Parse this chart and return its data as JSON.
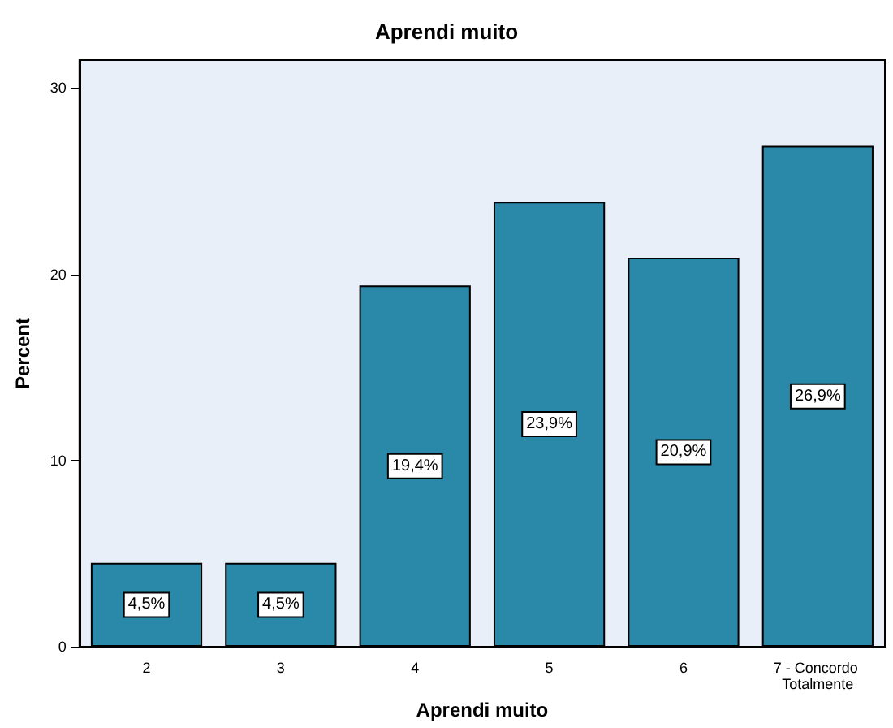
{
  "chart_data": {
    "type": "bar",
    "title": "Aprendi muito",
    "xlabel": "Aprendi muito",
    "ylabel": "Percent",
    "categories": [
      "2",
      "3",
      "4",
      "5",
      "6",
      "7 - Concordo Totalmente"
    ],
    "values": [
      4.5,
      4.5,
      19.4,
      23.9,
      20.9,
      26.9
    ],
    "value_labels": [
      "4,5%",
      "4,5%",
      "19,4%",
      "23,9%",
      "20,9%",
      "26,9%"
    ],
    "color": "#2a89a8",
    "ylim": [
      0,
      31.5
    ],
    "yticks": [
      0,
      10,
      20,
      30
    ],
    "grid": false
  }
}
